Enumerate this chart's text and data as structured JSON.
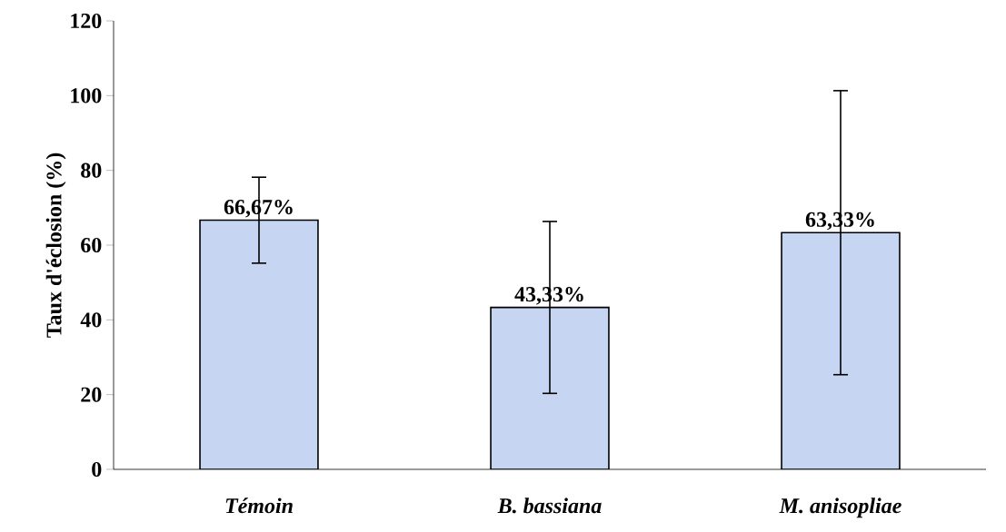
{
  "chart_data": {
    "type": "bar",
    "ylabel": "Taux d'éclosion (%)",
    "categories": [
      "Témoin",
      "B. bassiana",
      "M. anisopliae"
    ],
    "values": [
      66.67,
      43.33,
      63.33
    ],
    "errors": [
      11.5,
      23,
      38
    ],
    "value_labels": [
      "66,67%",
      "43,33%",
      "63,33%"
    ],
    "color": "#c6d6f2",
    "ylim": [
      0,
      120
    ],
    "yticks": [
      0,
      20,
      40,
      60,
      80,
      100,
      120
    ],
    "grid": false
  }
}
